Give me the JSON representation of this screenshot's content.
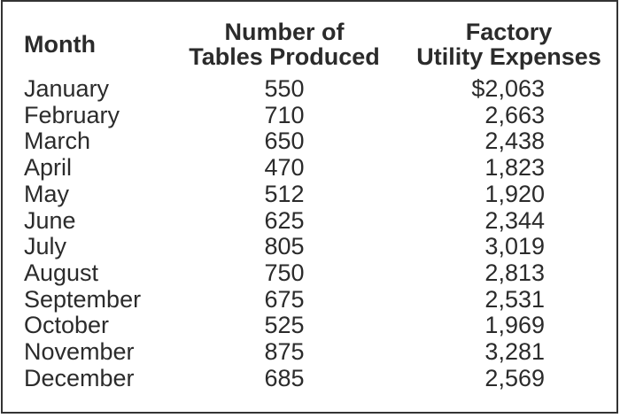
{
  "colors": {
    "ink": "#2b2b2b",
    "border": "#333333",
    "background": "#ffffff"
  },
  "table": {
    "headers": {
      "month": "Month",
      "produced": "Number of\nTables Produced",
      "expenses": "Factory\nUtility Expenses"
    },
    "rows": [
      {
        "month": "January",
        "produced": "550",
        "expenses": "$2,063"
      },
      {
        "month": "February",
        "produced": "710",
        "expenses": "2,663"
      },
      {
        "month": "March",
        "produced": "650",
        "expenses": "2,438"
      },
      {
        "month": "April",
        "produced": "470",
        "expenses": "1,823"
      },
      {
        "month": "May",
        "produced": "512",
        "expenses": "1,920"
      },
      {
        "month": "June",
        "produced": "625",
        "expenses": "2,344"
      },
      {
        "month": "July",
        "produced": "805",
        "expenses": "3,019"
      },
      {
        "month": "August",
        "produced": "750",
        "expenses": "2,813"
      },
      {
        "month": "September",
        "produced": "675",
        "expenses": "2,531"
      },
      {
        "month": "October",
        "produced": "525",
        "expenses": "1,969"
      },
      {
        "month": "November",
        "produced": "875",
        "expenses": "3,281"
      },
      {
        "month": "December",
        "produced": "685",
        "expenses": "2,569"
      }
    ]
  },
  "chart_data": {
    "type": "table",
    "title": "",
    "columns": [
      "Month",
      "Number of Tables Produced",
      "Factory Utility Expenses"
    ],
    "currency_symbol_shown_on_first_expense": "$",
    "rows": [
      [
        "January",
        550,
        2063
      ],
      [
        "February",
        710,
        2663
      ],
      [
        "March",
        650,
        2438
      ],
      [
        "April",
        470,
        1823
      ],
      [
        "May",
        512,
        1920
      ],
      [
        "June",
        625,
        2344
      ],
      [
        "July",
        805,
        3019
      ],
      [
        "August",
        750,
        2813
      ],
      [
        "September",
        675,
        2531
      ],
      [
        "October",
        525,
        1969
      ],
      [
        "November",
        875,
        3281
      ],
      [
        "December",
        685,
        2569
      ]
    ]
  }
}
